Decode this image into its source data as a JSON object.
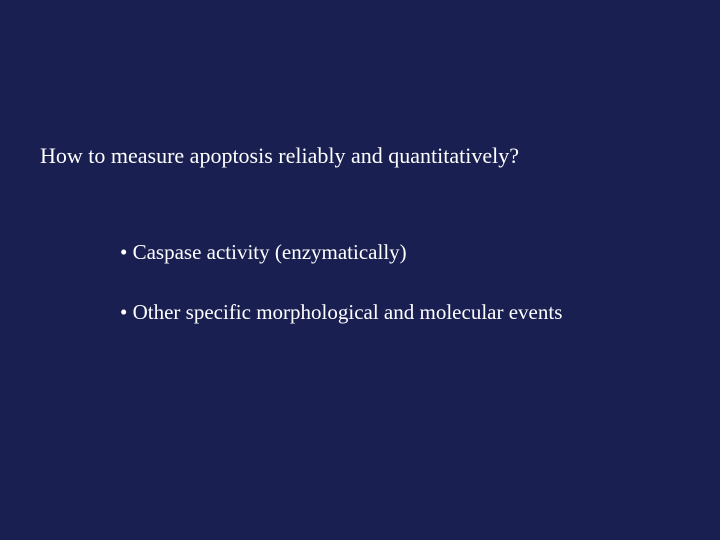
{
  "slide": {
    "background_color": "#1a1f52",
    "text_color": "#ffffff",
    "font_family": "Times New Roman",
    "title": "How to measure apoptosis reliably and quantitatively?",
    "title_fontsize": 22,
    "bullet_fontsize": 21,
    "bullets": [
      "• Caspase activity (enzymatically)",
      "• Other specific morphological and molecular events"
    ]
  }
}
